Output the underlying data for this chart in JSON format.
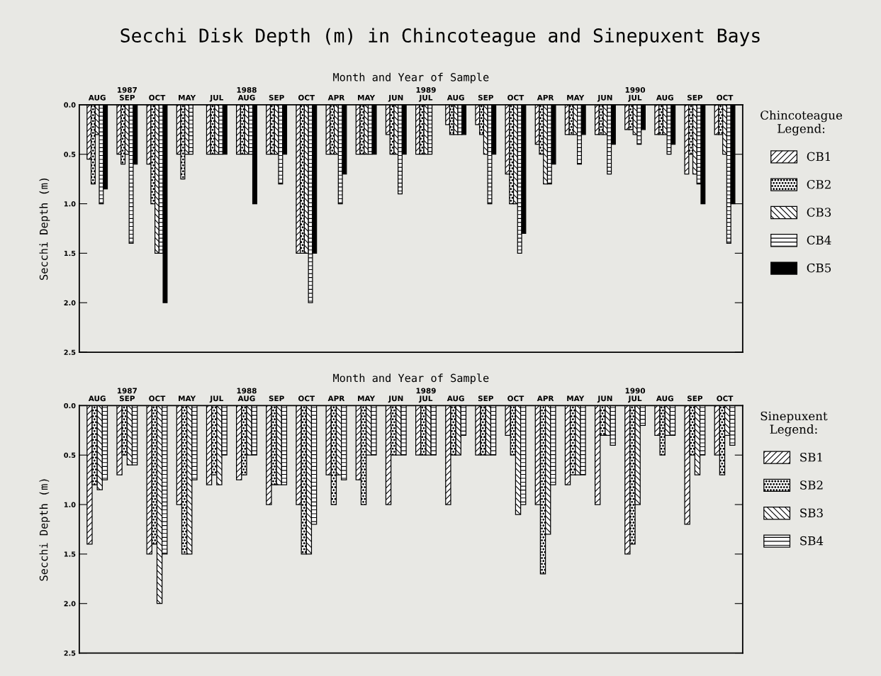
{
  "chart_data": [
    {
      "type": "bar",
      "title": "Secchi Disk Depth (m) in Chincoteague and Sinepuxent Bays",
      "xlabel": "Month and Year of Sample",
      "ylabel": "Secchi Depth (m)",
      "legend_title": "Chincoteague\nLegend:",
      "categories": [
        "AUG",
        "1987\nSEP",
        "OCT",
        "MAY",
        "JUL",
        "1988\nAUG",
        "SEP",
        "OCT",
        "APR",
        "MAY",
        "JUN",
        "1989\nJUL",
        "AUG",
        "SEP",
        "OCT",
        "APR",
        "MAY",
        "JUN",
        "1990\nJUL",
        "AUG",
        "SEP",
        "OCT"
      ],
      "series": [
        {
          "name": "CB1",
          "color": "#000000",
          "values": [
            0.55,
            0.5,
            0.6,
            0.5,
            0.5,
            0.5,
            0.5,
            1.5,
            0.5,
            0.5,
            0.3,
            0.5,
            0.2,
            0.2,
            0.7,
            0.4,
            0.3,
            0.3,
            0.25,
            0.3,
            0.7,
            0.3
          ]
        },
        {
          "name": "CB2",
          "color": "#000000",
          "values": [
            0.8,
            0.6,
            1.0,
            0.75,
            0.5,
            0.5,
            0.5,
            1.5,
            0.5,
            0.5,
            0.5,
            0.5,
            0.3,
            0.3,
            1.0,
            0.5,
            0.3,
            0.3,
            0.25,
            0.3,
            0.5,
            0.3
          ]
        },
        {
          "name": "CB3",
          "color": "#000000",
          "values": [
            0.3,
            0.5,
            1.5,
            0.5,
            0.5,
            0.5,
            0.5,
            1.5,
            0.5,
            0.5,
            0.5,
            0.5,
            0.3,
            0.5,
            1.0,
            0.8,
            0.3,
            0.3,
            0.3,
            0.3,
            0.7,
            0.5
          ]
        },
        {
          "name": "CB4",
          "color": "#000000",
          "values": [
            1.0,
            1.4,
            1.5,
            0.5,
            0.5,
            0.5,
            0.8,
            2.0,
            1.0,
            0.5,
            0.9,
            0.5,
            0.3,
            1.0,
            1.5,
            0.8,
            0.6,
            0.7,
            0.4,
            0.5,
            0.8,
            1.4
          ]
        },
        {
          "name": "CB5",
          "color": "#000000",
          "values": [
            0.85,
            0.6,
            2.0,
            null,
            0.5,
            1.0,
            0.5,
            1.5,
            0.7,
            0.5,
            0.5,
            null,
            0.3,
            0.5,
            1.3,
            0.6,
            0.3,
            0.4,
            0.25,
            0.4,
            1.0,
            1.0
          ]
        }
      ],
      "ylim": [
        2.5,
        0
      ],
      "yticks": [
        {
          "value": 0,
          "label": "0.0"
        },
        0.5,
        {
          "value": 1,
          "label": "1.0"
        },
        1.5,
        {
          "value": 2,
          "label": "2.0"
        },
        2.5
      ],
      "grid": false,
      "legend": "right"
    },
    {
      "type": "bar",
      "xlabel": "Month and Year of Sample",
      "ylabel": "Secchi Depth (m)",
      "legend_title": "Sinepuxent\nLegend:",
      "categories": [
        "AUG",
        "1987\nSEP",
        "OCT",
        "MAY",
        "JUL",
        "1988\nAUG",
        "SEP",
        "OCT",
        "APR",
        "MAY",
        "JUN",
        "1989\nJUL",
        "AUG",
        "SEP",
        "OCT",
        "APR",
        "MAY",
        "JUN",
        "1990\nJUL",
        "AUG",
        "SEP",
        "OCT"
      ],
      "series": [
        {
          "name": "SB1",
          "color": "#000000",
          "values": [
            1.4,
            0.7,
            1.5,
            1.0,
            0.8,
            0.75,
            1.0,
            1.0,
            0.7,
            0.75,
            1.0,
            0.5,
            1.0,
            0.5,
            0.3,
            1.0,
            0.8,
            1.0,
            1.5,
            0.3,
            1.2,
            0.5
          ]
        },
        {
          "name": "SB2",
          "color": "#000000",
          "values": [
            0.8,
            0.5,
            1.4,
            1.5,
            0.7,
            0.7,
            0.8,
            1.5,
            1.0,
            1.0,
            0.5,
            0.5,
            0.5,
            0.5,
            0.5,
            1.7,
            0.7,
            0.3,
            1.4,
            0.5,
            0.5,
            0.7
          ]
        },
        {
          "name": "SB3",
          "color": "#000000",
          "values": [
            0.85,
            0.6,
            2.0,
            1.5,
            0.8,
            0.5,
            0.8,
            1.5,
            0.7,
            0.5,
            0.5,
            0.5,
            0.5,
            0.5,
            1.1,
            1.3,
            0.7,
            0.3,
            1.0,
            0.3,
            0.7,
            0.3
          ]
        },
        {
          "name": "SB4",
          "color": "#000000",
          "values": [
            0.75,
            0.6,
            1.5,
            0.75,
            0.5,
            0.5,
            0.8,
            1.2,
            0.75,
            0.5,
            0.5,
            0.5,
            0.3,
            0.5,
            1.0,
            0.8,
            0.7,
            0.4,
            0.2,
            0.3,
            0.5,
            0.4
          ]
        }
      ],
      "ylim": [
        2.5,
        0
      ],
      "yticks": [
        {
          "value": 0,
          "label": "0.0"
        },
        0.5,
        {
          "value": 1,
          "label": "1.0"
        },
        1.5,
        {
          "value": 2,
          "label": "2.0"
        },
        2.5
      ],
      "grid": false,
      "legend": "right"
    }
  ]
}
